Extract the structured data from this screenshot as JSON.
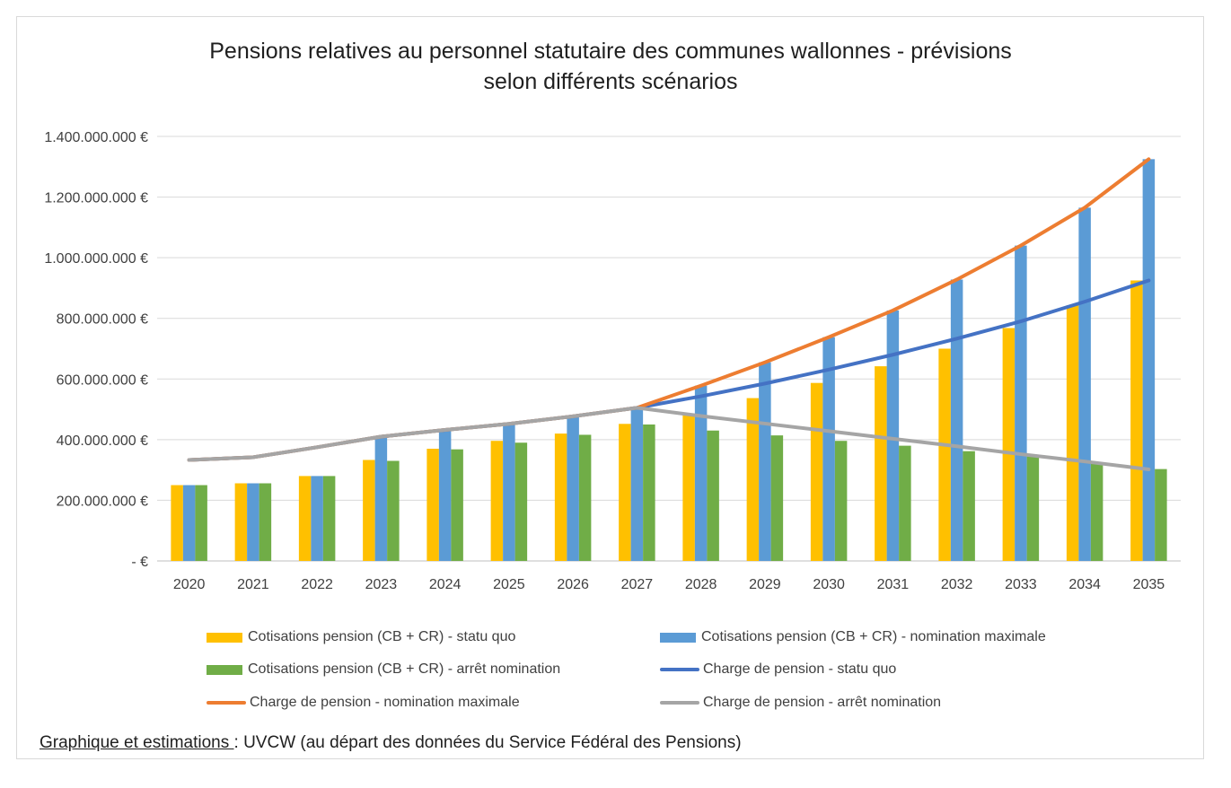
{
  "chart_data": {
    "type": "bar",
    "title": "Pensions relatives au personnel statutaire des communes wallonnes - prévisions selon différents scénarios",
    "title_lines": [
      "Pensions relatives au personnel statutaire des communes wallonnes - prévisions",
      "selon différents scénarios"
    ],
    "categories": [
      "2020",
      "2021",
      "2022",
      "2023",
      "2024",
      "2025",
      "2026",
      "2027",
      "2028",
      "2029",
      "2030",
      "2031",
      "2032",
      "2033",
      "2034",
      "2035"
    ],
    "ylim": [
      0,
      1400000000
    ],
    "yticks": [
      0,
      200000000,
      400000000,
      600000000,
      800000000,
      1000000000,
      1200000000,
      1400000000
    ],
    "ytick_labels": [
      "-  €",
      "200.000.000 €",
      "400.000.000 €",
      "600.000.000 €",
      "800.000.000 €",
      "1.000.000.000 €",
      "1.200.000.000 €",
      "1.400.000.000 €"
    ],
    "grid": true,
    "legend_position": "bottom",
    "bar_series": [
      {
        "name": "Cotisations pension (CB + CR) - statu quo",
        "color": "#ffc000",
        "values": [
          250000000,
          256000000,
          280000000,
          333000000,
          370000000,
          396000000,
          420000000,
          452000000,
          485000000,
          537000000,
          587000000,
          642000000,
          700000000,
          768000000,
          843000000,
          925000000
        ]
      },
      {
        "name": "Cotisations pension (CB + CR) - nomination maximale",
        "color": "#5b9bd5",
        "values": [
          250000000,
          256000000,
          280000000,
          410000000,
          430000000,
          455000000,
          478000000,
          505000000,
          578000000,
          655000000,
          738000000,
          826000000,
          928000000,
          1040000000,
          1165000000,
          1325000000
        ]
      },
      {
        "name": "Cotisations pension (CB + CR) - arrêt nomination",
        "color": "#70ad47",
        "values": [
          250000000,
          256000000,
          280000000,
          330000000,
          368000000,
          390000000,
          416000000,
          450000000,
          430000000,
          414000000,
          396000000,
          380000000,
          362000000,
          345000000,
          325000000,
          303000000
        ]
      }
    ],
    "line_series": [
      {
        "name": "Charge de pension - statu quo",
        "color": "#4472c4",
        "values": [
          333000000,
          342000000,
          375000000,
          410000000,
          432000000,
          452000000,
          477000000,
          505000000,
          543000000,
          585000000,
          631000000,
          680000000,
          733000000,
          790000000,
          855000000,
          925000000
        ]
      },
      {
        "name": "Charge de pension - nomination maximale",
        "color": "#ed7d31",
        "values": [
          333000000,
          342000000,
          375000000,
          410000000,
          432000000,
          452000000,
          477000000,
          505000000,
          578000000,
          655000000,
          738000000,
          826000000,
          928000000,
          1040000000,
          1165000000,
          1325000000
        ]
      },
      {
        "name": "Charge de pension - arrêt nomination",
        "color": "#a5a5a5",
        "values": [
          333000000,
          342000000,
          375000000,
          410000000,
          432000000,
          452000000,
          477000000,
          505000000,
          478000000,
          453000000,
          428000000,
          403000000,
          378000000,
          352000000,
          328000000,
          302000000
        ]
      }
    ]
  },
  "legend": {
    "items": [
      {
        "label": "Cotisations pension (CB + CR) - statu quo",
        "kind": "bar",
        "color": "#ffc000"
      },
      {
        "label": "Cotisations pension (CB + CR) - nomination maximale",
        "kind": "bar",
        "color": "#5b9bd5"
      },
      {
        "label": "Cotisations pension (CB + CR) - arrêt nomination",
        "kind": "bar",
        "color": "#70ad47"
      },
      {
        "label": "Charge de pension - statu quo",
        "kind": "line",
        "color": "#4472c4"
      },
      {
        "label": "Charge de pension - nomination maximale",
        "kind": "line",
        "color": "#ed7d31"
      },
      {
        "label": "Charge de pension - arrêt nomination",
        "kind": "line",
        "color": "#a5a5a5"
      }
    ]
  },
  "source": {
    "label": "Graphique et estimations ",
    "text": ": UVCW (au départ des données du Service Fédéral des Pensions)"
  }
}
